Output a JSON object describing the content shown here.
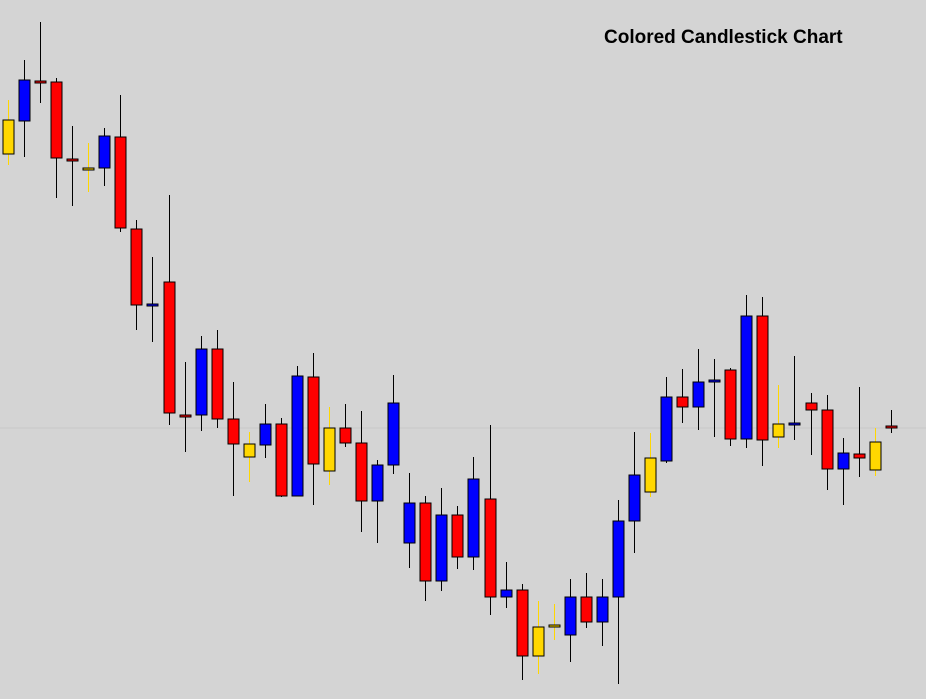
{
  "chart_data": {
    "type": "candlestick",
    "title": "Colored Candlestick Chart",
    "xlabel": "",
    "ylabel": "",
    "grid": false,
    "legend": "none",
    "reference_line": 428,
    "colors": {
      "background": "#d4d4d4",
      "bullish": "#0000ff",
      "bearish": "#ff0000",
      "doji": "#ffd700",
      "wick": "#000000",
      "border": "#000000",
      "reference_line": "#c8c8c8"
    },
    "ylim": [
      0,
      699
    ],
    "candles": [
      {
        "open": 154,
        "high": 165,
        "low": 100,
        "close": 120,
        "type": "doji"
      },
      {
        "open": 121,
        "high": 157,
        "low": 60,
        "close": 80,
        "type": "bullish"
      },
      {
        "open": 81,
        "high": 103,
        "low": 22,
        "close": 81,
        "type": "bearish"
      },
      {
        "open": 82,
        "high": 198,
        "low": 78,
        "close": 158,
        "type": "bearish"
      },
      {
        "open": 159,
        "high": 206,
        "low": 126,
        "close": 159,
        "type": "bearish"
      },
      {
        "open": 168,
        "high": 192,
        "low": 143,
        "close": 169,
        "type": "doji"
      },
      {
        "open": 168,
        "high": 186,
        "low": 128,
        "close": 136,
        "type": "bullish"
      },
      {
        "open": 137,
        "high": 232,
        "low": 95,
        "close": 228,
        "type": "bearish"
      },
      {
        "open": 229,
        "high": 330,
        "low": 220,
        "close": 305,
        "type": "bearish"
      },
      {
        "open": 304,
        "high": 342,
        "low": 257,
        "close": 304,
        "type": "bullish"
      },
      {
        "open": 282,
        "high": 425,
        "low": 195,
        "close": 413,
        "type": "bearish"
      },
      {
        "open": 415,
        "high": 452,
        "low": 362,
        "close": 415,
        "type": "bearish"
      },
      {
        "open": 415,
        "high": 431,
        "low": 336,
        "close": 349,
        "type": "bullish"
      },
      {
        "open": 349,
        "high": 428,
        "low": 330,
        "close": 419,
        "type": "bearish"
      },
      {
        "open": 419,
        "high": 496,
        "low": 382,
        "close": 444,
        "type": "bearish"
      },
      {
        "open": 457,
        "high": 482,
        "low": 432,
        "close": 444,
        "type": "doji"
      },
      {
        "open": 445,
        "high": 458,
        "low": 404,
        "close": 424,
        "type": "bullish"
      },
      {
        "open": 424,
        "high": 497,
        "low": 418,
        "close": 496,
        "type": "bearish"
      },
      {
        "open": 496,
        "high": 496,
        "low": 366,
        "close": 376,
        "type": "bullish"
      },
      {
        "open": 377,
        "high": 505,
        "low": 353,
        "close": 464,
        "type": "bearish"
      },
      {
        "open": 471,
        "high": 485,
        "low": 407,
        "close": 428,
        "type": "doji"
      },
      {
        "open": 428,
        "high": 447,
        "low": 404,
        "close": 443,
        "type": "bearish"
      },
      {
        "open": 443,
        "high": 532,
        "low": 411,
        "close": 501,
        "type": "bearish"
      },
      {
        "open": 501,
        "high": 543,
        "low": 460,
        "close": 465,
        "type": "bullish"
      },
      {
        "open": 465,
        "high": 474,
        "low": 375,
        "close": 403,
        "type": "bullish"
      },
      {
        "open": 543,
        "high": 568,
        "low": 473,
        "close": 503,
        "type": "bullish"
      },
      {
        "open": 503,
        "high": 601,
        "low": 496,
        "close": 581,
        "type": "bearish"
      },
      {
        "open": 581,
        "high": 591,
        "low": 488,
        "close": 515,
        "type": "bullish"
      },
      {
        "open": 515,
        "high": 569,
        "low": 506,
        "close": 557,
        "type": "bearish"
      },
      {
        "open": 557,
        "high": 570,
        "low": 457,
        "close": 479,
        "type": "bullish"
      },
      {
        "open": 499,
        "high": 615,
        "low": 425,
        "close": 597,
        "type": "bearish"
      },
      {
        "open": 597,
        "high": 608,
        "low": 562,
        "close": 590,
        "type": "bullish"
      },
      {
        "open": 590,
        "high": 680,
        "low": 584,
        "close": 656,
        "type": "bearish"
      },
      {
        "open": 656,
        "high": 674,
        "low": 601,
        "close": 627,
        "type": "doji"
      },
      {
        "open": 625,
        "high": 640,
        "low": 604,
        "close": 625,
        "type": "doji"
      },
      {
        "open": 635,
        "high": 662,
        "low": 579,
        "close": 597,
        "type": "bullish"
      },
      {
        "open": 597,
        "high": 628,
        "low": 573,
        "close": 622,
        "type": "bearish"
      },
      {
        "open": 622,
        "high": 646,
        "low": 579,
        "close": 597,
        "type": "bullish"
      },
      {
        "open": 597,
        "high": 684,
        "low": 500,
        "close": 521,
        "type": "bullish"
      },
      {
        "open": 521,
        "high": 553,
        "low": 432,
        "close": 475,
        "type": "bullish"
      },
      {
        "open": 492,
        "high": 497,
        "low": 433,
        "close": 458,
        "type": "doji"
      },
      {
        "open": 461,
        "high": 463,
        "low": 377,
        "close": 397,
        "type": "bullish"
      },
      {
        "open": 397,
        "high": 423,
        "low": 369,
        "close": 407,
        "type": "bearish"
      },
      {
        "open": 407,
        "high": 430,
        "low": 349,
        "close": 382,
        "type": "bullish"
      },
      {
        "open": 382,
        "high": 437,
        "low": 359,
        "close": 380,
        "type": "bullish"
      },
      {
        "open": 370,
        "high": 446,
        "low": 368,
        "close": 439,
        "type": "bearish"
      },
      {
        "open": 439,
        "high": 448,
        "low": 295,
        "close": 316,
        "type": "bullish"
      },
      {
        "open": 316,
        "high": 466,
        "low": 297,
        "close": 440,
        "type": "bearish"
      },
      {
        "open": 437,
        "high": 448,
        "low": 385,
        "close": 424,
        "type": "doji"
      },
      {
        "open": 423,
        "high": 440,
        "low": 356,
        "close": 423,
        "type": "bullish"
      },
      {
        "open": 403,
        "high": 455,
        "low": 393,
        "close": 410,
        "type": "bearish"
      },
      {
        "open": 410,
        "high": 490,
        "low": 395,
        "close": 469,
        "type": "bearish"
      },
      {
        "open": 469,
        "high": 505,
        "low": 438,
        "close": 453,
        "type": "bullish"
      },
      {
        "open": 454,
        "high": 477,
        "low": 387,
        "close": 458,
        "type": "bearish"
      },
      {
        "open": 470,
        "high": 476,
        "low": 428,
        "close": 442,
        "type": "doji"
      },
      {
        "open": 426,
        "high": 433,
        "low": 410,
        "close": 428,
        "type": "bearish"
      }
    ]
  }
}
